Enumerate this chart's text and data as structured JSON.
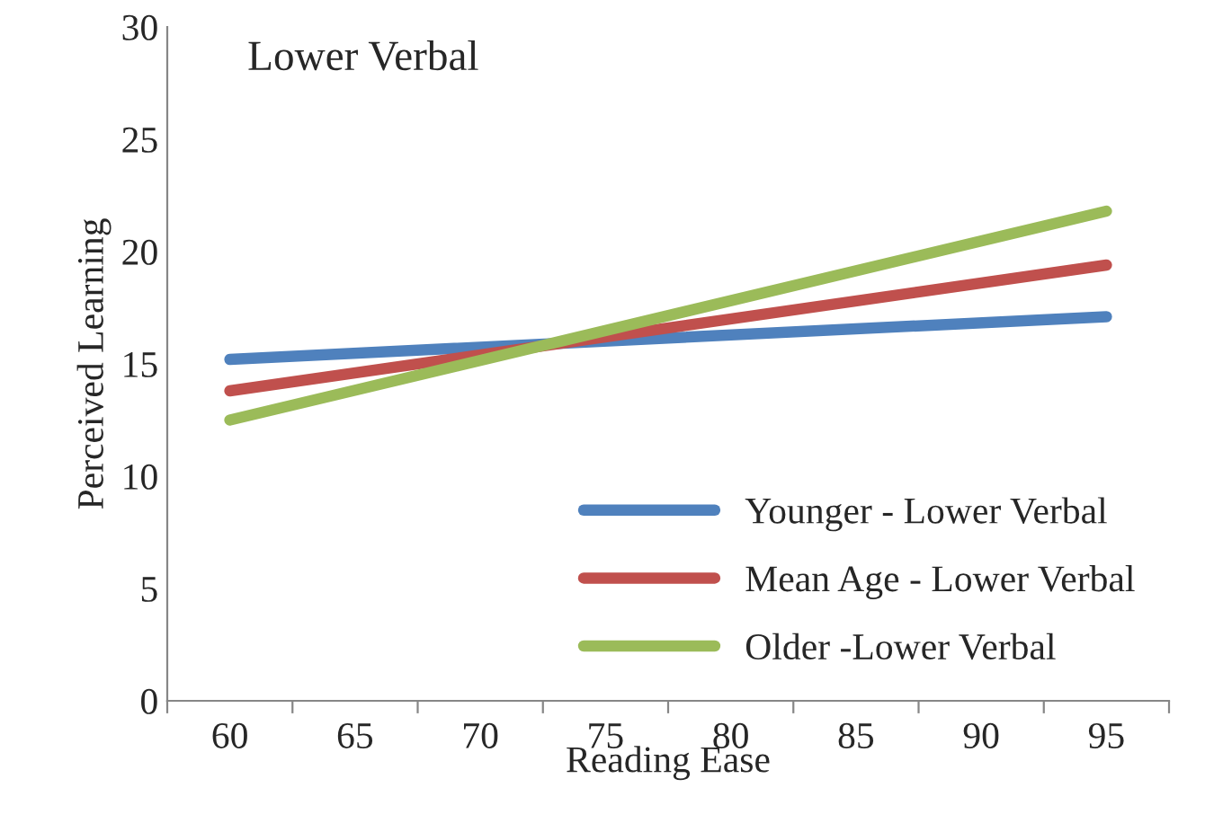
{
  "chart_data": {
    "type": "line",
    "title": "Lower Verbal",
    "xlabel": "Reading Ease",
    "ylabel": "Perceived Learning",
    "x": [
      60,
      95
    ],
    "series": [
      {
        "name": "Younger - Lower Verbal",
        "color": "#4f81bd",
        "values": [
          15.2,
          17.1
        ]
      },
      {
        "name": "Mean Age - Lower Verbal",
        "color": "#c0504d",
        "values": [
          13.8,
          19.4
        ]
      },
      {
        "name": "Older -Lower Verbal",
        "color": "#9bbb59",
        "values": [
          12.5,
          21.8
        ]
      }
    ],
    "xlim": [
      57.5,
      97.5
    ],
    "xticks": [
      {
        "value": 57.5,
        "label": null
      },
      60,
      {
        "value": 62.5,
        "label": null
      },
      65,
      {
        "value": 67.5,
        "label": null
      },
      70,
      {
        "value": 72.5,
        "label": null
      },
      75,
      {
        "value": 77.5,
        "label": null
      },
      80,
      {
        "value": 82.5,
        "label": null
      },
      85,
      {
        "value": 87.5,
        "label": null
      },
      90,
      {
        "value": 92.5,
        "label": null
      },
      95,
      {
        "value": 97.5,
        "label": null
      }
    ],
    "ylim": [
      0,
      30
    ],
    "yticks": [
      0,
      5,
      10,
      15,
      20,
      25,
      30
    ],
    "grid": false,
    "legend": "bottom right",
    "marker": "none",
    "line_style": "solid"
  }
}
